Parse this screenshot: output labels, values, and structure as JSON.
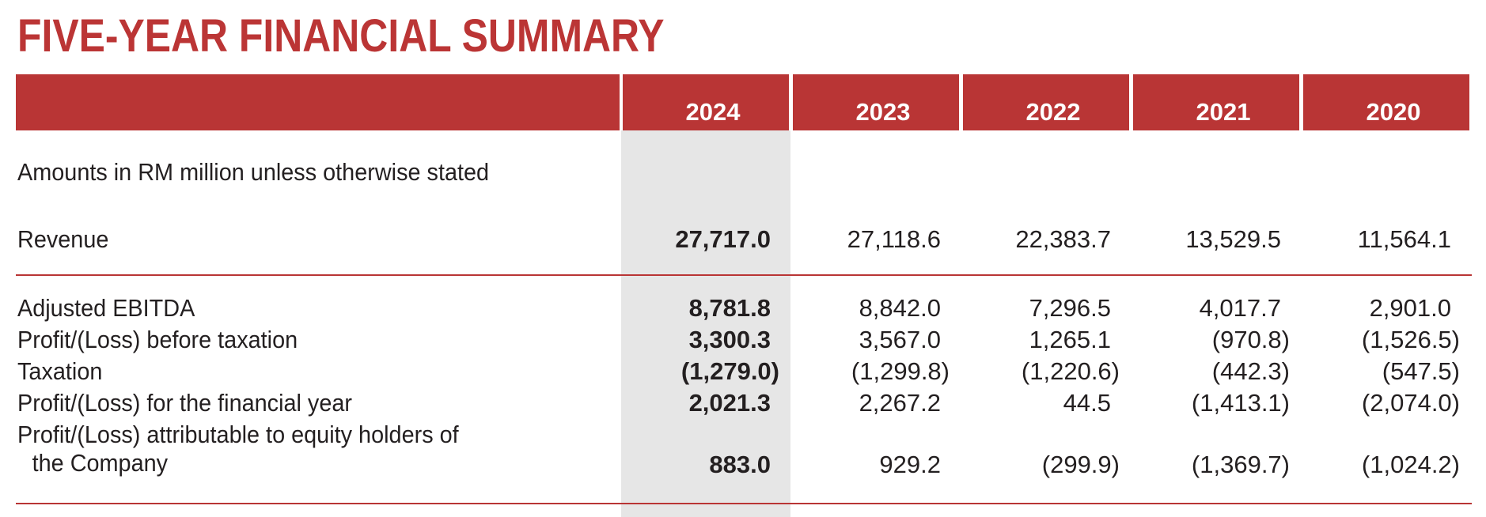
{
  "title": "FIVE-YEAR FINANCIAL SUMMARY",
  "colors": {
    "accent": "#B93535",
    "highlight_column": "#E6E6E6",
    "text": "#231F20"
  },
  "table": {
    "years": [
      "2024",
      "2023",
      "2022",
      "2021",
      "2020"
    ],
    "note": "Amounts in RM million unless otherwise stated",
    "rows": [
      {
        "label": "Revenue",
        "values": [
          "27,717.0",
          "27,118.6",
          "22,383.7",
          "13,529.5",
          "11,564.1"
        ]
      },
      {
        "label": "Adjusted EBITDA",
        "values": [
          "8,781.8",
          "8,842.0",
          "7,296.5",
          "4,017.7",
          "2,901.0"
        ]
      },
      {
        "label": "Profit/(Loss) before taxation",
        "values": [
          "3,300.3",
          "3,567.0",
          "1,265.1",
          "(970.8)",
          "(1,526.5)"
        ]
      },
      {
        "label": "Taxation",
        "values": [
          "(1,279.0)",
          "(1,299.8)",
          "(1,220.6)",
          "(442.3)",
          "(547.5)"
        ]
      },
      {
        "label": "Profit/(Loss) for the financial year",
        "values": [
          "2,021.3",
          "2,267.2",
          "44.5",
          "(1,413.1)",
          "(2,074.0)"
        ]
      },
      {
        "label_line1": "Profit/(Loss) attributable to equity holders of",
        "label_line2": "the Company",
        "values": [
          "883.0",
          "929.2",
          "(299.9)",
          "(1,369.7)",
          "(1,024.2)"
        ]
      }
    ]
  }
}
